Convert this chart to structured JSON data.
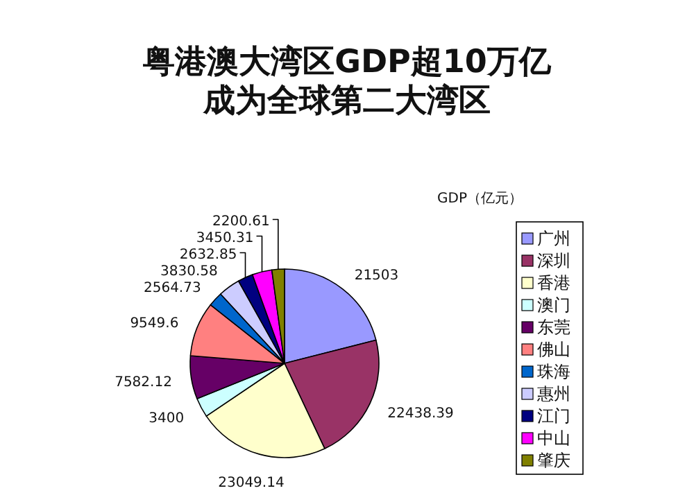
{
  "chart_data": {
    "type": "pie",
    "title": "粤港澳大湾区GDP超10万亿",
    "subtitle": "成为全球第二大湾区",
    "legend_title": "GDP（亿元）",
    "legend": "right",
    "data_labels": true,
    "categories": [
      "广州",
      "深圳",
      "香港",
      "澳门",
      "东莞",
      "佛山",
      "珠海",
      "惠州",
      "江门",
      "中山",
      "肇庆"
    ],
    "values": [
      21503,
      22438.39,
      23049.14,
      3400,
      7582.12,
      9549.6,
      2564.73,
      3830.58,
      2632.85,
      3450.31,
      2200.61
    ],
    "colors": [
      "#9999ff",
      "#993366",
      "#ffffcc",
      "#ccffff",
      "#660066",
      "#ff8080",
      "#0066cc",
      "#ccccff",
      "#000080",
      "#ff00ff",
      "#808000"
    ]
  }
}
